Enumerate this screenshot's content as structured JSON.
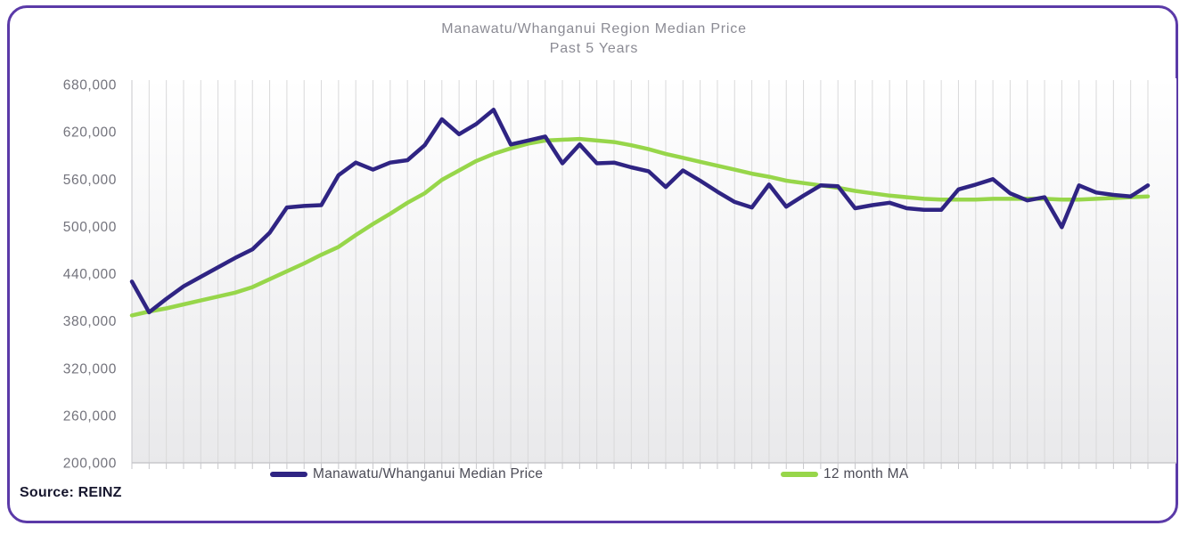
{
  "frame": {
    "border_color": "#5b3aa8"
  },
  "title": {
    "line1": "Manawatu/Whanganui Region Median Price",
    "line2": "Past 5 Years"
  },
  "legend": [
    {
      "label": "Manawatu/Whanganui Median Price",
      "color": "#2f2483"
    },
    {
      "label": "12 month MA",
      "color": "#97d64a"
    }
  ],
  "source": {
    "text": "Source: REINZ"
  },
  "chart_data": {
    "type": "line",
    "title": "Manawatu/Whanganui Region Median Price",
    "subtitle": "Past 5 Years",
    "x": {
      "points": 60,
      "unit": "months",
      "tick_labels_visible": false
    },
    "ylim": [
      200000,
      680000
    ],
    "y_ticks": [
      {
        "label": "200,000",
        "value": 200000
      },
      {
        "label": "260,000",
        "value": 260000
      },
      {
        "label": "320,000",
        "value": 320000
      },
      {
        "label": "380,000",
        "value": 380000
      },
      {
        "label": "440,000",
        "value": 440000
      },
      {
        "label": "500,000",
        "value": 500000
      },
      {
        "label": "560,000",
        "value": 560000
      },
      {
        "label": "620,000",
        "value": 620000
      },
      {
        "label": "680,000",
        "value": 680000
      }
    ],
    "grid": {
      "vertical": true,
      "horizontal": false,
      "color": "#d9d9da"
    },
    "legend_position": "bottom",
    "series": [
      {
        "name": "Manawatu/Whanganui Median Price",
        "color": "#2f2483",
        "values": [
          430000,
          391000,
          408000,
          424000,
          436000,
          448000,
          460000,
          471000,
          492000,
          524000,
          526000,
          527000,
          565000,
          581000,
          572000,
          581000,
          584000,
          603000,
          636000,
          617000,
          630000,
          648000,
          604000,
          609000,
          614000,
          580000,
          604000,
          580000,
          581000,
          575000,
          570000,
          550000,
          571000,
          558000,
          544000,
          531000,
          524000,
          553000,
          525000,
          539000,
          552000,
          551000,
          523000,
          527000,
          530000,
          523000,
          521000,
          521000,
          547000,
          553000,
          560000,
          542000,
          533000,
          537000,
          499000,
          552000,
          543000,
          540000,
          538000,
          552000
        ]
      },
      {
        "name": "12 month MA",
        "color": "#97d64a",
        "values": [
          387000,
          392000,
          396000,
          401000,
          406000,
          411000,
          416000,
          423000,
          433000,
          443000,
          453000,
          464000,
          474000,
          489000,
          503000,
          516000,
          530000,
          542000,
          559000,
          571000,
          583000,
          592000,
          599000,
          605000,
          609000,
          610000,
          611000,
          609000,
          607000,
          603000,
          598000,
          592000,
          587000,
          582000,
          577000,
          572000,
          567000,
          563000,
          558000,
          555000,
          552000,
          549000,
          545000,
          542000,
          539000,
          537000,
          535000,
          534000,
          534000,
          534000,
          535000,
          535000,
          535000,
          535000,
          534000,
          534000,
          535000,
          536000,
          537000,
          538000
        ]
      }
    ]
  }
}
